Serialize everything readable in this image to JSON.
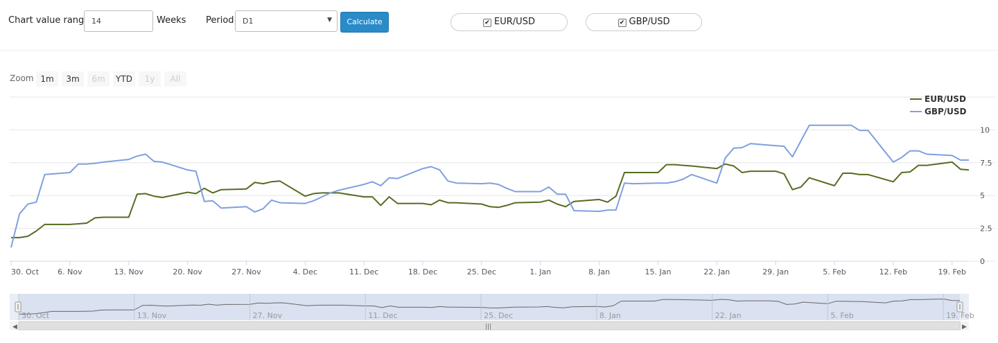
{
  "controls": {
    "range_label": "Chart value range",
    "range_value": "14",
    "weeks_label": "Weeks",
    "period_label": "Period",
    "period_value": "D1",
    "calculate_label": "Calculate",
    "pair1": "EUR/USD",
    "pair2": "GBP/USD"
  },
  "zoom": {
    "label": "Zoom",
    "buttons": [
      "1m",
      "3m",
      "6m",
      "YTD",
      "1y",
      "All"
    ],
    "disabled": [
      false,
      false,
      true,
      false,
      true,
      true
    ]
  },
  "colors": {
    "eur": "#556b21",
    "gbp": "#7f9fe0",
    "navigator_fill": "#d4dced"
  },
  "chart_data": {
    "type": "line",
    "x": [
      "Oct 30",
      "Oct 31",
      "Nov 1",
      "Nov 2",
      "Nov 3",
      "Nov 6",
      "Nov 7",
      "Nov 8",
      "Nov 9",
      "Nov 10",
      "Nov 13",
      "Nov 14",
      "Nov 15",
      "Nov 16",
      "Nov 17",
      "Nov 20",
      "Nov 21",
      "Nov 22",
      "Nov 23",
      "Nov 24",
      "Nov 27",
      "Nov 28",
      "Nov 29",
      "Nov 30",
      "Dec 1",
      "Dec 4",
      "Dec 5",
      "Dec 6",
      "Dec 7",
      "Dec 8",
      "Dec 11",
      "Dec 12",
      "Dec 13",
      "Dec 14",
      "Dec 15",
      "Dec 18",
      "Dec 19",
      "Dec 20",
      "Dec 21",
      "Dec 22",
      "Dec 25",
      "Dec 26",
      "Dec 27",
      "Dec 28",
      "Dec 29",
      "Jan 1",
      "Jan 2",
      "Jan 3",
      "Jan 4",
      "Jan 5",
      "Jan 8",
      "Jan 9",
      "Jan 10",
      "Jan 11",
      "Jan 12",
      "Jan 15",
      "Jan 16",
      "Jan 17",
      "Jan 18",
      "Jan 19",
      "Jan 22",
      "Jan 23",
      "Jan 24",
      "Jan 25",
      "Jan 26",
      "Jan 29",
      "Jan 30",
      "Jan 31",
      "Feb 1",
      "Feb 2",
      "Feb 5",
      "Feb 6",
      "Feb 7",
      "Feb 8",
      "Feb 9",
      "Feb 12",
      "Feb 13",
      "Feb 14",
      "Feb 15",
      "Feb 16",
      "Feb 19",
      "Feb 20",
      "Feb 21"
    ],
    "series": [
      {
        "name": "EUR/USD",
        "values": [
          1.8,
          1.8,
          1.9,
          2.3,
          2.8,
          2.8,
          2.85,
          2.9,
          3.3,
          3.35,
          3.35,
          5.1,
          5.15,
          4.95,
          4.85,
          5.25,
          5.15,
          5.55,
          5.2,
          5.45,
          5.5,
          6.0,
          5.9,
          6.05,
          6.1,
          4.95,
          5.15,
          5.2,
          5.2,
          5.2,
          4.9,
          4.9,
          4.25,
          4.9,
          4.4,
          4.4,
          4.3,
          4.65,
          4.45,
          4.45,
          4.35,
          4.15,
          4.1,
          4.25,
          4.45,
          4.5,
          4.65,
          4.35,
          4.15,
          4.55,
          4.7,
          4.5,
          4.95,
          6.75,
          6.75,
          6.75,
          7.35,
          7.35,
          7.3,
          7.25,
          7.05,
          7.4,
          7.25,
          6.75,
          6.85,
          6.85,
          6.65,
          5.45,
          5.65,
          6.35,
          5.75,
          6.7,
          6.7,
          6.6,
          6.6,
          6.05,
          6.75,
          6.8,
          7.3,
          7.3,
          7.55,
          7.0,
          6.95
        ]
      },
      {
        "name": "GBP/USD",
        "values": [
          1.05,
          3.6,
          4.35,
          4.5,
          6.6,
          6.75,
          7.4,
          7.4,
          7.45,
          7.55,
          7.75,
          8.0,
          8.15,
          7.6,
          7.55,
          6.95,
          6.85,
          4.55,
          4.6,
          4.05,
          4.15,
          3.75,
          4.0,
          4.65,
          4.45,
          4.4,
          4.6,
          4.9,
          5.2,
          5.4,
          5.85,
          6.05,
          5.75,
          6.35,
          6.3,
          7.05,
          7.2,
          6.95,
          6.1,
          5.95,
          5.9,
          5.95,
          5.85,
          5.55,
          5.3,
          5.3,
          5.65,
          5.1,
          5.1,
          3.85,
          3.8,
          3.9,
          3.9,
          5.95,
          5.9,
          5.95,
          5.95,
          6.05,
          6.25,
          6.6,
          5.95,
          7.85,
          8.6,
          8.65,
          8.95,
          8.8,
          8.75,
          7.95,
          9.15,
          10.35,
          10.35,
          10.35,
          10.35,
          9.95,
          9.95,
          7.55,
          7.9,
          8.4,
          8.4,
          8.15,
          8.05,
          7.7,
          7.7
        ]
      }
    ],
    "y_ticks": [
      "0",
      "2.5",
      "5",
      "7.5",
      "10"
    ],
    "x_ticks": [
      "30. Oct",
      "6. Nov",
      "13. Nov",
      "20. Nov",
      "27. Nov",
      "4. Dec",
      "11. Dec",
      "18. Dec",
      "25. Dec",
      "1. Jan",
      "8. Jan",
      "15. Jan",
      "22. Jan",
      "29. Jan",
      "5. Feb",
      "12. Feb",
      "19. Feb"
    ],
    "nav_ticks": [
      "30. Oct",
      "13. Nov",
      "27. Nov",
      "11. Dec",
      "25. Dec",
      "8. Jan",
      "22. Jan",
      "5. Feb",
      "19. Feb"
    ],
    "ylim": [
      0,
      12.5
    ],
    "grid": true,
    "legend": "top-right"
  }
}
